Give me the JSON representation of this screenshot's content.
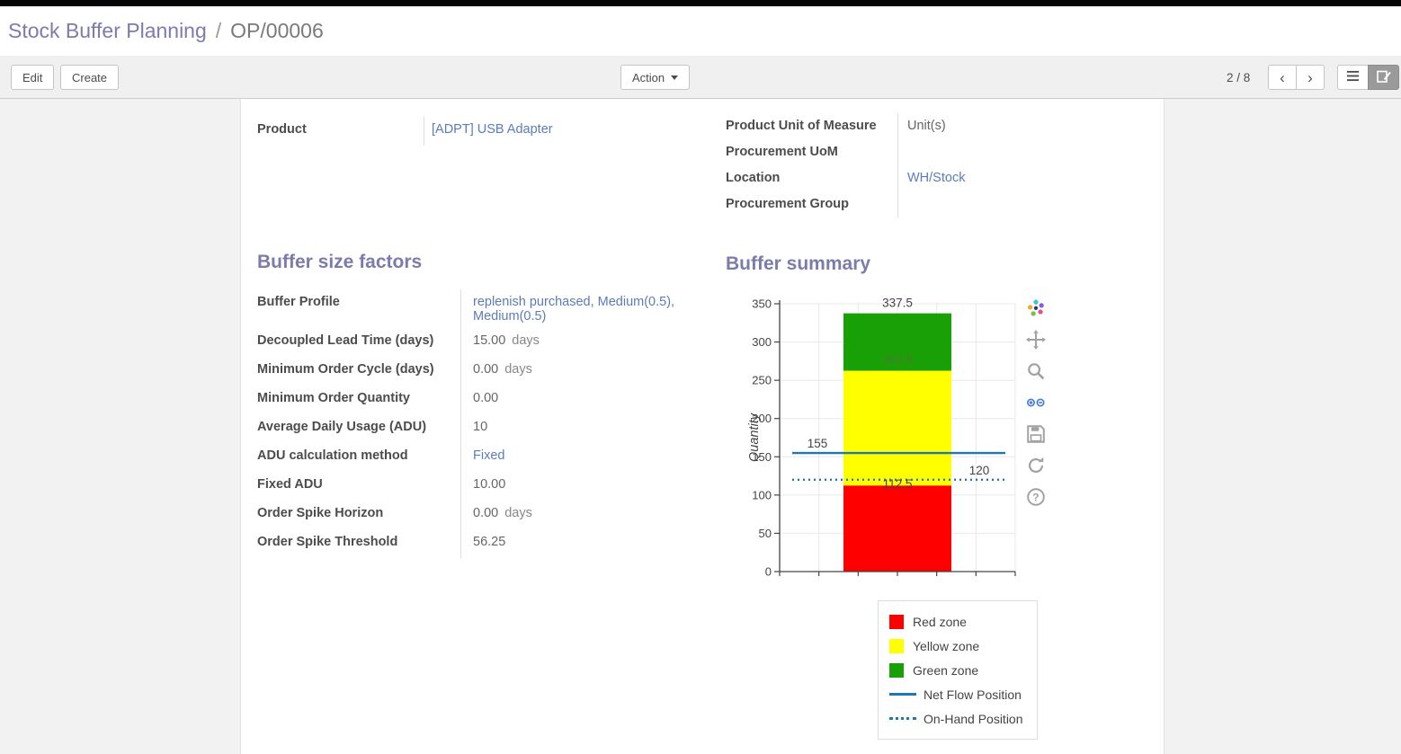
{
  "breadcrumb": {
    "section": "Stock Buffer Planning",
    "separator": "/",
    "record": "OP/00006"
  },
  "toolbar": {
    "edit_label": "Edit",
    "create_label": "Create",
    "action_label": "Action",
    "pager": "2 / 8",
    "prev_icon": "‹",
    "next_icon": "›"
  },
  "form": {
    "product": {
      "label": "Product",
      "value": "[ADPT] USB Adapter"
    },
    "right_fields": [
      {
        "label": "Product Unit of Measure",
        "value": "Unit(s)"
      },
      {
        "label": "Procurement UoM",
        "value": ""
      },
      {
        "label": "Location",
        "value": "WH/Stock"
      },
      {
        "label": "Procurement Group",
        "value": ""
      }
    ],
    "buffer_factors": {
      "title": "Buffer size factors",
      "rows": [
        {
          "label": "Buffer Profile",
          "value": "replenish purchased, Medium(0.5), Medium(0.5)"
        },
        {
          "label": "Decoupled Lead Time (days)",
          "value": "15.00",
          "suffix": "days"
        },
        {
          "label": "Minimum Order Cycle (days)",
          "value": "0.00",
          "suffix": "days"
        },
        {
          "label": "Minimum Order Quantity",
          "value": "0.00"
        },
        {
          "label": "Average Daily Usage (ADU)",
          "value": "10"
        },
        {
          "label": "ADU calculation method",
          "value": "Fixed"
        },
        {
          "label": "Fixed ADU",
          "value": "10.00"
        },
        {
          "label": "Order Spike Horizon",
          "value": "0.00",
          "suffix": "days"
        },
        {
          "label": "Order Spike Threshold",
          "value": "56.25"
        }
      ]
    },
    "buffer_summary_title": "Buffer summary"
  },
  "chart_data": {
    "type": "bar",
    "title": "",
    "ylabel": "Quantity",
    "ylim": [
      0,
      350
    ],
    "yticks": [
      0,
      50,
      100,
      150,
      200,
      250,
      300,
      350
    ],
    "grid": true,
    "zones": [
      {
        "name": "Red zone",
        "from": 0,
        "to": 112.5,
        "color": "#ff0000"
      },
      {
        "name": "Yellow zone",
        "from": 112.5,
        "to": 262.5,
        "color": "#ffff00"
      },
      {
        "name": "Green zone",
        "from": 262.5,
        "to": 337.5,
        "color": "#18a006"
      }
    ],
    "lines": [
      {
        "name": "Net Flow Position",
        "value": 155,
        "style": "solid",
        "color": "#1f77b4"
      },
      {
        "name": "On-Hand Position",
        "value": 120,
        "style": "dotted",
        "color": "#1f77b4"
      }
    ],
    "annotations": [
      {
        "text": "337.5",
        "value": 337.5,
        "align": "center",
        "dy": -7,
        "color": "#444444"
      },
      {
        "text": "262.5",
        "value": 262.5,
        "align": "center",
        "dy": -8,
        "color": "#4e7a28"
      },
      {
        "text": "155",
        "value": 155,
        "align": "left",
        "dy": -6,
        "color": "#444444"
      },
      {
        "text": "112.5",
        "value": 112.5,
        "align": "center",
        "dy": 3,
        "color": "#444444"
      },
      {
        "text": "120",
        "value": 120,
        "align": "right",
        "dy": -6,
        "color": "#444444"
      }
    ],
    "legend": [
      "Red zone",
      "Yellow zone",
      "Green zone",
      "Net Flow Position",
      "On-Hand Position"
    ],
    "legend_position": "below-right"
  },
  "colors": {
    "heading_purple": "#7c7bad",
    "link_blue": "#5b7cb8",
    "modebar_accent": "#447adb",
    "net_flow_blue": "#1f77b4"
  }
}
